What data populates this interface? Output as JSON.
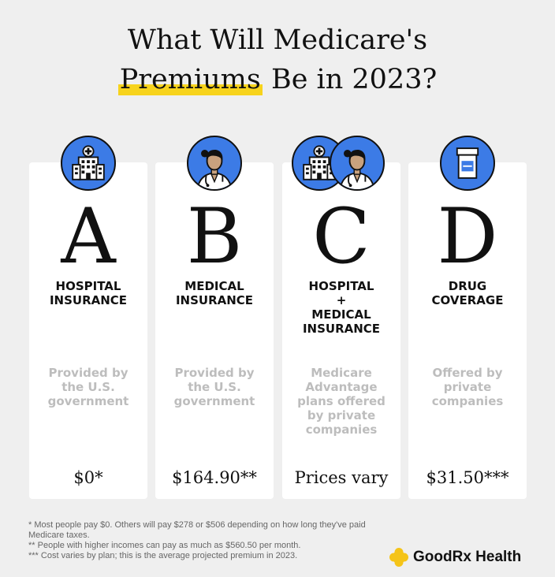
{
  "title": {
    "line1": "What Will Medicare's",
    "highlight": "Premiums",
    "rest": "Be in 2023?"
  },
  "cards": [
    {
      "letter": "A",
      "heading": [
        "HOSPITAL",
        "INSURANCE"
      ],
      "description": "Provided by the U.S. government",
      "price": "$0*",
      "icons": [
        "hospital-icon"
      ]
    },
    {
      "letter": "B",
      "heading": [
        "MEDICAL",
        "INSURANCE"
      ],
      "description": "Provided by the U.S. government",
      "price": "$164.90**",
      "icons": [
        "doctor-icon"
      ]
    },
    {
      "letter": "C",
      "heading": [
        "HOSPITAL",
        "+",
        "MEDICAL",
        "INSURANCE"
      ],
      "description": "Medicare Advantage plans offered by private companies",
      "price": "Prices vary",
      "icons": [
        "hospital-icon",
        "doctor-icon"
      ]
    },
    {
      "letter": "D",
      "heading": [
        "DRUG",
        "COVERAGE"
      ],
      "description": "Offered by private companies",
      "price": "$31.50***",
      "icons": [
        "pill-bottle-icon"
      ]
    }
  ],
  "footnotes": [
    "* Most people pay $0. Others will pay $278 or $506 depending on how long they've paid Medicare taxes.",
    "** People with higher incomes can pay as much as $560.50 per month.",
    "*** Cost varies by plan; this is the average projected premium in 2023."
  ],
  "logo": {
    "text": "GoodRx Health"
  },
  "colors": {
    "accent_blue": "#3c7be6",
    "highlight_yellow": "#f7d31c",
    "muted_text": "#bdbdbd",
    "logo_yellow": "#f5c418"
  }
}
